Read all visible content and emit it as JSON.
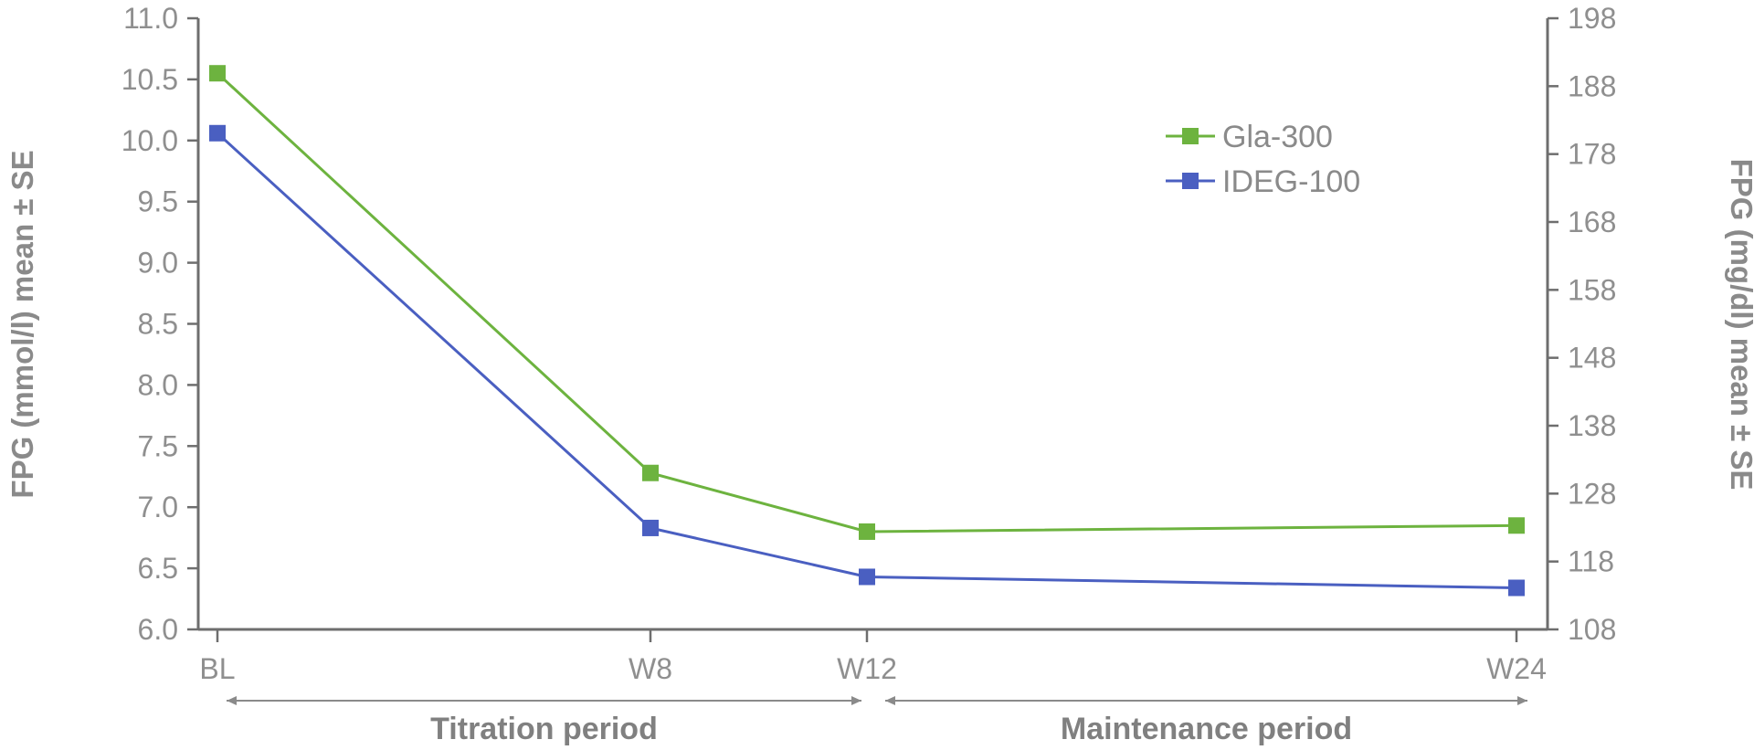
{
  "chart_data": {
    "type": "line",
    "categories": [
      "BL",
      "W8",
      "W12",
      "W24"
    ],
    "x_weeks": [
      0,
      8,
      12,
      24
    ],
    "series": [
      {
        "name": "Gla-300",
        "color": "#6db33f",
        "values": [
          10.55,
          7.28,
          6.8,
          6.85
        ]
      },
      {
        "name": "IDEG-100",
        "color": "#4a5fc1",
        "values": [
          10.06,
          6.83,
          6.43,
          6.34
        ]
      }
    ],
    "ylabel_left": "FPG (mmol/l) mean ± SE",
    "ylabel_right": "FPG (mg/dl) mean ± SE",
    "ylim_left": [
      6.0,
      11.0
    ],
    "yticks_left": [
      "6.0",
      "6.5",
      "7.0",
      "7.5",
      "8.0",
      "8.5",
      "9.0",
      "9.5",
      "10.0",
      "10.5",
      "11.0"
    ],
    "ylim_right": [
      108,
      198
    ],
    "yticks_right": [
      "108",
      "118",
      "128",
      "138",
      "148",
      "158",
      "168",
      "178",
      "188",
      "198"
    ],
    "legend_position": "top-right",
    "grid": false,
    "periods": [
      {
        "label": "Titration period",
        "from": "BL",
        "to": "W12"
      },
      {
        "label": "Maintenance period",
        "from": "W12",
        "to": "W24"
      }
    ]
  }
}
